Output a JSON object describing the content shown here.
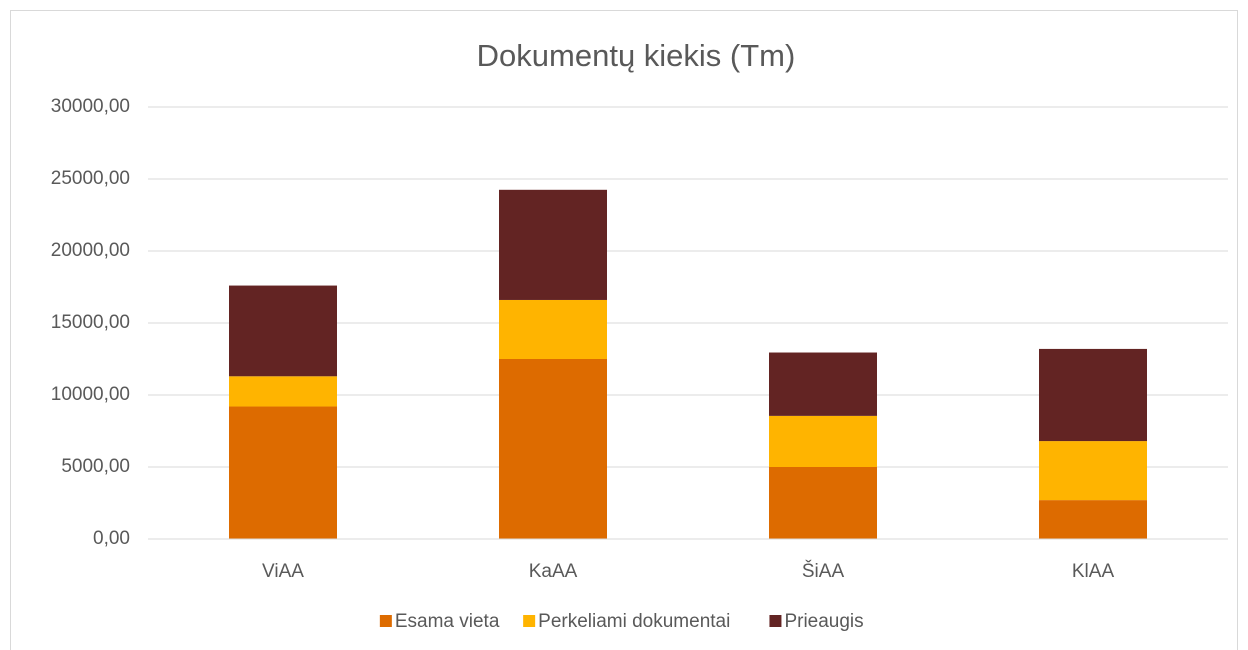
{
  "chart_data": {
    "type": "stacked_bar",
    "title": "Dokumentų kiekis (Tm)",
    "categories": [
      "ViAA",
      "KaAA",
      "ŠiAA",
      "KlAA"
    ],
    "series": [
      {
        "name": "Esama vieta",
        "color": "#dd6b00",
        "values": [
          9200,
          12500,
          5000,
          2700
        ]
      },
      {
        "name": "Perkeliami dokumentai",
        "color": "#ffb400",
        "values": [
          2100,
          4100,
          3550,
          4100
        ]
      },
      {
        "name": "Prieaugis",
        "color": "#632423",
        "values": [
          6300,
          7650,
          4400,
          6400
        ]
      }
    ],
    "ylim": [
      0,
      30000
    ],
    "yticks": [
      {
        "value": 0,
        "label": "0,00"
      },
      {
        "value": 5000,
        "label": "5000,00"
      },
      {
        "value": 10000,
        "label": "10000,00"
      },
      {
        "value": 15000,
        "label": "15000,00"
      },
      {
        "value": 20000,
        "label": "20000,00"
      },
      {
        "value": 25000,
        "label": "25000,00"
      },
      {
        "value": 30000,
        "label": "30000,00"
      }
    ],
    "grid": true,
    "legend": "bottom"
  }
}
